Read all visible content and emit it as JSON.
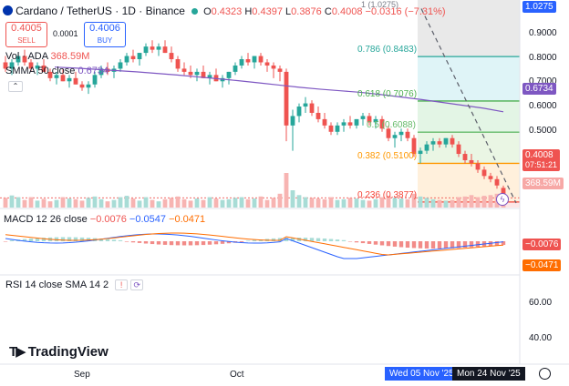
{
  "header": {
    "symbol": "Cardano / TetherUS · 1D · Binance",
    "open_label": "O",
    "open": "0.4323",
    "high_label": "H",
    "high": "0.4397",
    "low_label": "L",
    "low": "0.3876",
    "close_label": "C",
    "close": "0.4008",
    "change": "−0.0316 (−7.31%)"
  },
  "trade": {
    "sell_price": "0.4005",
    "sell_label": "SELL",
    "spread": "0.0001",
    "buy_price": "0.4006",
    "buy_label": "BUY"
  },
  "volume": {
    "label": "Vol · ADA",
    "value": "368.59M"
  },
  "sma": {
    "label": "SMMA 50 close",
    "value": "0.6734"
  },
  "fib": {
    "top_label": "1 (1.0275)",
    "levels": [
      {
        "label": "0.786 (0.8483)",
        "price": 0.8483,
        "color": "#26a69a"
      },
      {
        "label": "0.618 (0.7076)",
        "price": 0.7076,
        "color": "#4caf50"
      },
      {
        "label": "0.5 (0.6088)",
        "price": 0.6088,
        "color": "#66bb6a"
      },
      {
        "label": "0.382 (0.5100)",
        "price": 0.51,
        "color": "#ff9800"
      },
      {
        "label": "0.236 (0.3877)",
        "price": 0.3877,
        "color": "#f44336"
      }
    ]
  },
  "price_axis": {
    "ticks": [
      "0.9000",
      "0.8000",
      "0.7000",
      "0.6000",
      "0.5000"
    ],
    "tags": {
      "top": "1.0275",
      "sma": "0.6734",
      "last": "0.4008",
      "countdown": "07:51:21",
      "volume": "368.59M"
    }
  },
  "macd": {
    "label": "MACD 12 26 close",
    "v1": "−0.0076",
    "v2": "−0.0547",
    "v3": "−0.0471",
    "tags": [
      "−0.0076",
      "−0.0471"
    ]
  },
  "rsi": {
    "label": "RSI 14 close SMA 14 2",
    "ticks": [
      "60.00",
      "40.00"
    ]
  },
  "brand": {
    "name": "TradingView"
  },
  "time_axis": {
    "labels": [
      "Sep",
      "Oct"
    ],
    "range_start": "Wed 05 Nov '25",
    "range_end": "Mon 24 Nov '25"
  },
  "colors": {
    "up": "#26a69a",
    "down": "#ef5350",
    "sma": "#7e57c2",
    "macd_line": "#2962ff",
    "signal_line": "#ff6d00",
    "accent": "#2962ff"
  },
  "chart_data": {
    "type": "candlestick",
    "ylim": [
      0.37,
      1.0275
    ],
    "candles": [
      [
        0.83,
        0.85,
        0.8,
        0.81
      ],
      [
        0.81,
        0.84,
        0.79,
        0.83
      ],
      [
        0.83,
        0.86,
        0.82,
        0.85
      ],
      [
        0.85,
        0.87,
        0.82,
        0.83
      ],
      [
        0.83,
        0.84,
        0.8,
        0.81
      ],
      [
        0.81,
        0.83,
        0.79,
        0.82
      ],
      [
        0.82,
        0.84,
        0.8,
        0.8
      ],
      [
        0.8,
        0.81,
        0.77,
        0.78
      ],
      [
        0.78,
        0.8,
        0.76,
        0.79
      ],
      [
        0.79,
        0.81,
        0.77,
        0.77
      ],
      [
        0.77,
        0.79,
        0.75,
        0.78
      ],
      [
        0.78,
        0.8,
        0.76,
        0.76
      ],
      [
        0.76,
        0.77,
        0.74,
        0.75
      ],
      [
        0.75,
        0.77,
        0.73,
        0.76
      ],
      [
        0.76,
        0.8,
        0.75,
        0.79
      ],
      [
        0.79,
        0.82,
        0.78,
        0.81
      ],
      [
        0.81,
        0.83,
        0.79,
        0.8
      ],
      [
        0.8,
        0.82,
        0.78,
        0.81
      ],
      [
        0.81,
        0.84,
        0.8,
        0.83
      ],
      [
        0.83,
        0.86,
        0.82,
        0.85
      ],
      [
        0.85,
        0.87,
        0.83,
        0.84
      ],
      [
        0.84,
        0.86,
        0.82,
        0.86
      ],
      [
        0.86,
        0.89,
        0.85,
        0.88
      ],
      [
        0.88,
        0.9,
        0.86,
        0.87
      ],
      [
        0.87,
        0.89,
        0.85,
        0.88
      ],
      [
        0.88,
        0.9,
        0.86,
        0.86
      ],
      [
        0.86,
        0.88,
        0.83,
        0.84
      ],
      [
        0.84,
        0.85,
        0.8,
        0.81
      ],
      [
        0.81,
        0.83,
        0.79,
        0.8
      ],
      [
        0.8,
        0.82,
        0.78,
        0.79
      ],
      [
        0.79,
        0.81,
        0.77,
        0.8
      ],
      [
        0.8,
        0.82,
        0.78,
        0.78
      ],
      [
        0.78,
        0.8,
        0.76,
        0.79
      ],
      [
        0.79,
        0.81,
        0.77,
        0.77
      ],
      [
        0.77,
        0.79,
        0.75,
        0.78
      ],
      [
        0.78,
        0.8,
        0.76,
        0.8
      ],
      [
        0.8,
        0.83,
        0.79,
        0.82
      ],
      [
        0.82,
        0.85,
        0.81,
        0.84
      ],
      [
        0.84,
        0.86,
        0.82,
        0.83
      ],
      [
        0.83,
        0.85,
        0.81,
        0.85
      ],
      [
        0.85,
        0.86,
        0.82,
        0.83
      ],
      [
        0.83,
        0.84,
        0.8,
        0.82
      ],
      [
        0.82,
        0.83,
        0.78,
        0.81
      ],
      [
        0.81,
        0.82,
        0.77,
        0.8
      ],
      [
        0.8,
        0.81,
        0.58,
        0.63
      ],
      [
        0.63,
        0.68,
        0.55,
        0.66
      ],
      [
        0.66,
        0.7,
        0.64,
        0.69
      ],
      [
        0.69,
        0.72,
        0.67,
        0.7
      ],
      [
        0.7,
        0.71,
        0.66,
        0.67
      ],
      [
        0.67,
        0.69,
        0.64,
        0.65
      ],
      [
        0.65,
        0.67,
        0.62,
        0.63
      ],
      [
        0.63,
        0.64,
        0.6,
        0.61
      ],
      [
        0.61,
        0.64,
        0.6,
        0.63
      ],
      [
        0.63,
        0.65,
        0.61,
        0.64
      ],
      [
        0.64,
        0.66,
        0.62,
        0.63
      ],
      [
        0.63,
        0.65,
        0.62,
        0.65
      ],
      [
        0.65,
        0.67,
        0.63,
        0.66
      ],
      [
        0.66,
        0.67,
        0.63,
        0.64
      ],
      [
        0.64,
        0.66,
        0.62,
        0.65
      ],
      [
        0.65,
        0.66,
        0.61,
        0.62
      ],
      [
        0.62,
        0.63,
        0.58,
        0.59
      ],
      [
        0.59,
        0.61,
        0.56,
        0.6
      ],
      [
        0.6,
        0.62,
        0.58,
        0.61
      ],
      [
        0.61,
        0.62,
        0.58,
        0.59
      ],
      [
        0.59,
        0.6,
        0.53,
        0.54
      ],
      [
        0.54,
        0.56,
        0.51,
        0.55
      ],
      [
        0.55,
        0.58,
        0.54,
        0.57
      ],
      [
        0.57,
        0.59,
        0.55,
        0.58
      ],
      [
        0.58,
        0.59,
        0.56,
        0.57
      ],
      [
        0.57,
        0.59,
        0.56,
        0.59
      ],
      [
        0.59,
        0.6,
        0.56,
        0.57
      ],
      [
        0.57,
        0.58,
        0.53,
        0.54
      ],
      [
        0.54,
        0.55,
        0.51,
        0.52
      ],
      [
        0.52,
        0.54,
        0.5,
        0.51
      ],
      [
        0.51,
        0.52,
        0.48,
        0.49
      ],
      [
        0.49,
        0.5,
        0.46,
        0.47
      ],
      [
        0.47,
        0.48,
        0.45,
        0.46
      ],
      [
        0.46,
        0.47,
        0.43,
        0.44
      ],
      [
        0.4323,
        0.4397,
        0.3876,
        0.4008
      ]
    ],
    "smma": [
      0.815,
      0.812,
      0.808,
      0.804,
      0.8,
      0.795,
      0.79,
      0.784,
      0.778,
      0.772,
      0.765,
      0.758,
      0.751,
      0.745,
      0.74,
      0.735,
      0.728,
      0.72,
      0.712,
      0.703,
      0.694,
      0.685,
      0.6734
    ],
    "volume": [
      0.28,
      0.35,
      0.3,
      0.22,
      0.3,
      0.2,
      0.25,
      0.18,
      0.22,
      0.3,
      0.26,
      0.24,
      0.2,
      0.28,
      0.32,
      0.24,
      0.18,
      0.22,
      0.3,
      0.34,
      0.26,
      0.2,
      0.3,
      0.22,
      0.18,
      0.24,
      0.28,
      0.32,
      0.24,
      0.2,
      0.26,
      0.22,
      0.3,
      0.26,
      0.22,
      0.24,
      0.28,
      0.3,
      0.24,
      0.26,
      0.32,
      0.22,
      0.28,
      0.4,
      1.0,
      0.5,
      0.36,
      0.3,
      0.28,
      0.26,
      0.24,
      0.3,
      0.22,
      0.24,
      0.28,
      0.26,
      0.22,
      0.2,
      0.24,
      0.3,
      0.34,
      0.28,
      0.26,
      0.24,
      0.4,
      0.32,
      0.28,
      0.24,
      0.22,
      0.2,
      0.22,
      0.3,
      0.32,
      0.36,
      0.3,
      0.34,
      0.36,
      0.4,
      0.45
    ]
  }
}
